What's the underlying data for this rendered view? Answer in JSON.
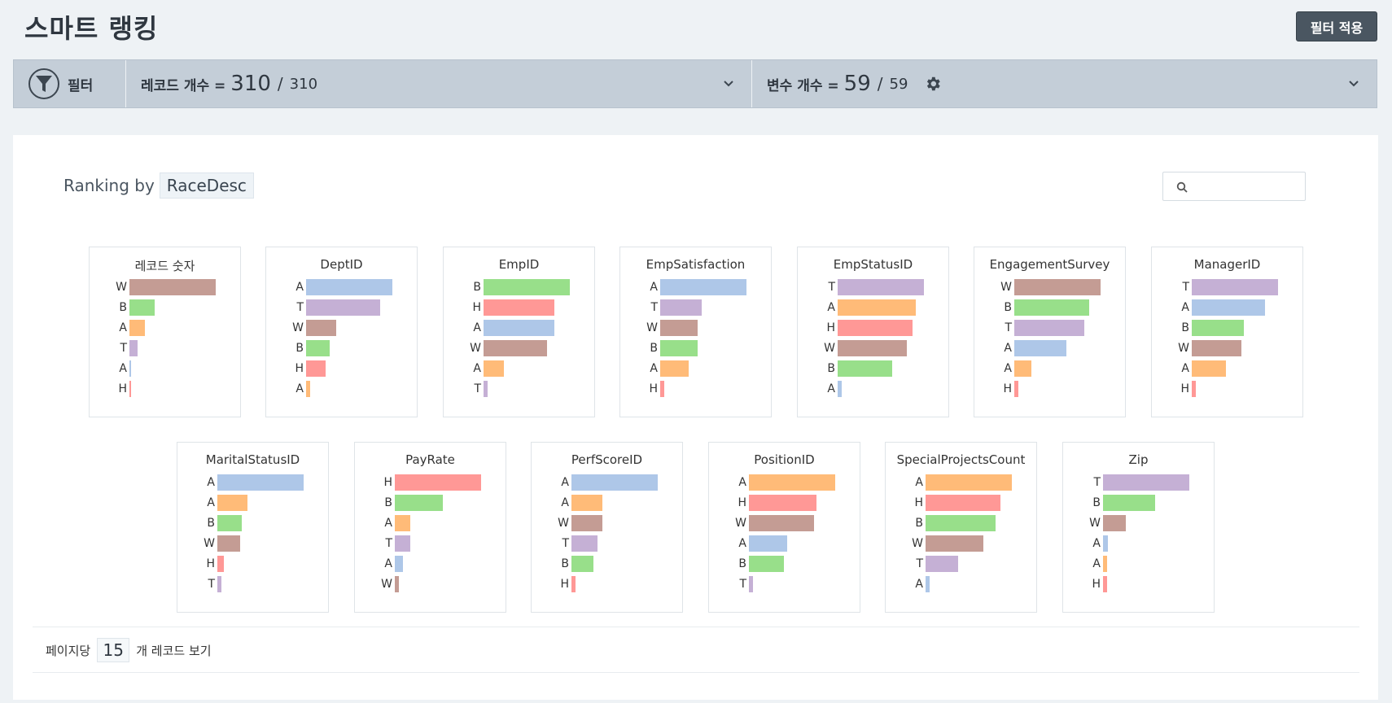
{
  "page": {
    "title": "스마트 랭킹",
    "apply_filter_label": "필터 적용"
  },
  "filter_bar": {
    "filter_label": "필터",
    "records": {
      "label": "레코드 개수 =",
      "current": "310",
      "separator": "/",
      "total": "310"
    },
    "variables": {
      "label": "변수 개수 =",
      "current": "59",
      "separator": "/",
      "total": "59"
    }
  },
  "ranking": {
    "prefix": "Ranking by",
    "variable": "RaceDesc"
  },
  "search": {
    "placeholder": ""
  },
  "colors": {
    "A_blue": "#aec7e8",
    "T": "#c5b0d5",
    "W": "#c49c94",
    "B": "#98df8a",
    "A_orange": "#ffbb78",
    "H": "#ff9896"
  },
  "cards": [
    {
      "title": "레코드 숫자",
      "rows": [
        {
          "label": "W",
          "value": 1.0,
          "color": "#c49c94"
        },
        {
          "label": "B",
          "value": 0.29,
          "color": "#98df8a"
        },
        {
          "label": "A",
          "value": 0.18,
          "color": "#ffbb78"
        },
        {
          "label": "T",
          "value": 0.09,
          "color": "#c5b0d5"
        },
        {
          "label": "A",
          "value": 0.02,
          "color": "#aec7e8"
        },
        {
          "label": "H",
          "value": 0.02,
          "color": "#ff9896"
        }
      ]
    },
    {
      "title": "DeptID",
      "rows": [
        {
          "label": "A",
          "value": 1.0,
          "color": "#aec7e8"
        },
        {
          "label": "T",
          "value": 0.86,
          "color": "#c5b0d5"
        },
        {
          "label": "W",
          "value": 0.35,
          "color": "#c49c94"
        },
        {
          "label": "B",
          "value": 0.27,
          "color": "#98df8a"
        },
        {
          "label": "H",
          "value": 0.23,
          "color": "#ff9896"
        },
        {
          "label": "A",
          "value": 0.05,
          "color": "#ffbb78"
        }
      ]
    },
    {
      "title": "EmpID",
      "rows": [
        {
          "label": "B",
          "value": 1.0,
          "color": "#98df8a"
        },
        {
          "label": "H",
          "value": 0.82,
          "color": "#ff9896"
        },
        {
          "label": "A",
          "value": 0.82,
          "color": "#aec7e8"
        },
        {
          "label": "W",
          "value": 0.74,
          "color": "#c49c94"
        },
        {
          "label": "A",
          "value": 0.24,
          "color": "#ffbb78"
        },
        {
          "label": "T",
          "value": 0.05,
          "color": "#c5b0d5"
        }
      ]
    },
    {
      "title": "EmpSatisfaction",
      "rows": [
        {
          "label": "A",
          "value": 1.0,
          "color": "#aec7e8"
        },
        {
          "label": "T",
          "value": 0.48,
          "color": "#c5b0d5"
        },
        {
          "label": "W",
          "value": 0.43,
          "color": "#c49c94"
        },
        {
          "label": "B",
          "value": 0.43,
          "color": "#98df8a"
        },
        {
          "label": "A",
          "value": 0.33,
          "color": "#ffbb78"
        },
        {
          "label": "H",
          "value": 0.05,
          "color": "#ff9896"
        }
      ]
    },
    {
      "title": "EmpStatusID",
      "rows": [
        {
          "label": "T",
          "value": 1.0,
          "color": "#c5b0d5"
        },
        {
          "label": "A",
          "value": 0.91,
          "color": "#ffbb78"
        },
        {
          "label": "H",
          "value": 0.87,
          "color": "#ff9896"
        },
        {
          "label": "W",
          "value": 0.8,
          "color": "#c49c94"
        },
        {
          "label": "B",
          "value": 0.63,
          "color": "#98df8a"
        },
        {
          "label": "A",
          "value": 0.05,
          "color": "#aec7e8"
        }
      ]
    },
    {
      "title": "EngagementSurvey",
      "rows": [
        {
          "label": "W",
          "value": 1.0,
          "color": "#c49c94"
        },
        {
          "label": "B",
          "value": 0.87,
          "color": "#98df8a"
        },
        {
          "label": "T",
          "value": 0.81,
          "color": "#c5b0d5"
        },
        {
          "label": "A",
          "value": 0.6,
          "color": "#aec7e8"
        },
        {
          "label": "A",
          "value": 0.2,
          "color": "#ffbb78"
        },
        {
          "label": "H",
          "value": 0.05,
          "color": "#ff9896"
        }
      ]
    },
    {
      "title": "ManagerID",
      "rows": [
        {
          "label": "T",
          "value": 1.0,
          "color": "#c5b0d5"
        },
        {
          "label": "A",
          "value": 0.85,
          "color": "#aec7e8"
        },
        {
          "label": "B",
          "value": 0.6,
          "color": "#98df8a"
        },
        {
          "label": "W",
          "value": 0.58,
          "color": "#c49c94"
        },
        {
          "label": "A",
          "value": 0.4,
          "color": "#ffbb78"
        },
        {
          "label": "H",
          "value": 0.05,
          "color": "#ff9896"
        }
      ]
    },
    {
      "title": "MaritalStatusID",
      "rows": [
        {
          "label": "A",
          "value": 1.0,
          "color": "#aec7e8"
        },
        {
          "label": "A",
          "value": 0.35,
          "color": "#ffbb78"
        },
        {
          "label": "B",
          "value": 0.28,
          "color": "#98df8a"
        },
        {
          "label": "W",
          "value": 0.26,
          "color": "#c49c94"
        },
        {
          "label": "H",
          "value": 0.08,
          "color": "#ff9896"
        },
        {
          "label": "T",
          "value": 0.05,
          "color": "#c5b0d5"
        }
      ]
    },
    {
      "title": "PayRate",
      "rows": [
        {
          "label": "H",
          "value": 1.0,
          "color": "#ff9896"
        },
        {
          "label": "B",
          "value": 0.56,
          "color": "#98df8a"
        },
        {
          "label": "A",
          "value": 0.18,
          "color": "#ffbb78"
        },
        {
          "label": "T",
          "value": 0.18,
          "color": "#c5b0d5"
        },
        {
          "label": "A",
          "value": 0.09,
          "color": "#aec7e8"
        },
        {
          "label": "W",
          "value": 0.05,
          "color": "#c49c94"
        }
      ]
    },
    {
      "title": "PerfScoreID",
      "rows": [
        {
          "label": "A",
          "value": 1.0,
          "color": "#aec7e8"
        },
        {
          "label": "A",
          "value": 0.36,
          "color": "#ffbb78"
        },
        {
          "label": "W",
          "value": 0.36,
          "color": "#c49c94"
        },
        {
          "label": "T",
          "value": 0.3,
          "color": "#c5b0d5"
        },
        {
          "label": "B",
          "value": 0.25,
          "color": "#98df8a"
        },
        {
          "label": "H",
          "value": 0.05,
          "color": "#ff9896"
        }
      ]
    },
    {
      "title": "PositionID",
      "rows": [
        {
          "label": "A",
          "value": 1.0,
          "color": "#ffbb78"
        },
        {
          "label": "H",
          "value": 0.78,
          "color": "#ff9896"
        },
        {
          "label": "W",
          "value": 0.75,
          "color": "#c49c94"
        },
        {
          "label": "A",
          "value": 0.44,
          "color": "#aec7e8"
        },
        {
          "label": "B",
          "value": 0.41,
          "color": "#98df8a"
        },
        {
          "label": "T",
          "value": 0.05,
          "color": "#c5b0d5"
        }
      ]
    },
    {
      "title": "SpecialProjectsCount",
      "rows": [
        {
          "label": "A",
          "value": 1.0,
          "color": "#ffbb78"
        },
        {
          "label": "H",
          "value": 0.87,
          "color": "#ff9896"
        },
        {
          "label": "B",
          "value": 0.81,
          "color": "#98df8a"
        },
        {
          "label": "W",
          "value": 0.67,
          "color": "#c49c94"
        },
        {
          "label": "T",
          "value": 0.38,
          "color": "#c5b0d5"
        },
        {
          "label": "A",
          "value": 0.05,
          "color": "#aec7e8"
        }
      ]
    },
    {
      "title": "Zip",
      "rows": [
        {
          "label": "T",
          "value": 1.0,
          "color": "#c5b0d5"
        },
        {
          "label": "B",
          "value": 0.6,
          "color": "#98df8a"
        },
        {
          "label": "W",
          "value": 0.26,
          "color": "#c49c94"
        },
        {
          "label": "A",
          "value": 0.06,
          "color": "#aec7e8"
        },
        {
          "label": "A",
          "value": 0.05,
          "color": "#ffbb78"
        },
        {
          "label": "H",
          "value": 0.05,
          "color": "#ff9896"
        }
      ]
    }
  ],
  "pagination": {
    "prefix": "페이지당",
    "value": "15",
    "suffix": "개 레코드 보기"
  }
}
